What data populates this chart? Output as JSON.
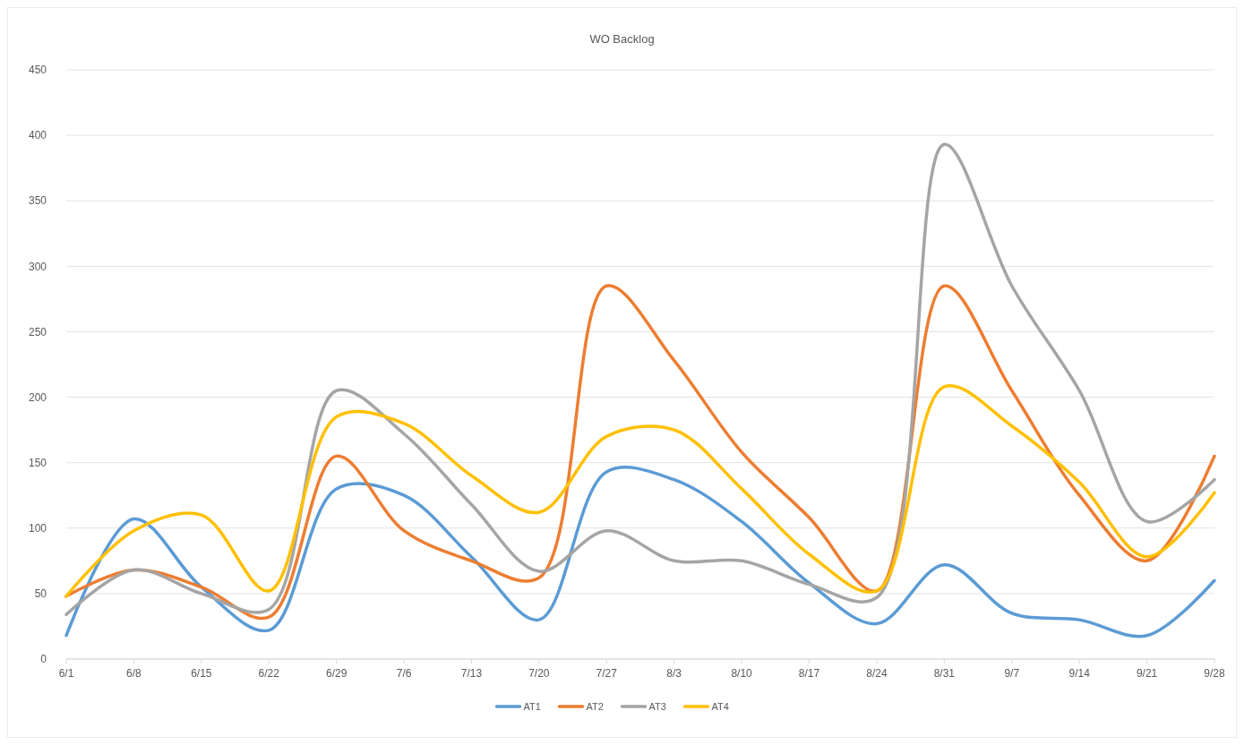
{
  "chart_data": {
    "type": "line",
    "title": "WO Backlog",
    "categories": [
      "6/1",
      "6/8",
      "6/15",
      "6/22",
      "6/29",
      "7/6",
      "7/13",
      "7/20",
      "7/27",
      "8/3",
      "8/10",
      "8/17",
      "8/24",
      "8/31",
      "9/7",
      "9/14",
      "9/21",
      "9/28"
    ],
    "series": [
      {
        "name": "AT1",
        "color": "#5b9bd5",
        "values": [
          18,
          107,
          55,
          22,
          130,
          125,
          78,
          30,
          143,
          137,
          105,
          58,
          27,
          72,
          35,
          30,
          18,
          60
        ]
      },
      {
        "name": "AT2",
        "color": "#ed7d31",
        "values": [
          48,
          68,
          55,
          32,
          155,
          98,
          75,
          62,
          285,
          228,
          158,
          108,
          52,
          285,
          205,
          125,
          75,
          155
        ]
      },
      {
        "name": "AT3",
        "color": "#a5a5a5",
        "values": [
          34,
          68,
          50,
          38,
          205,
          172,
          118,
          67,
          98,
          75,
          75,
          57,
          47,
          393,
          285,
          205,
          105,
          137
        ]
      },
      {
        "name": "AT4",
        "color": "#ffc000",
        "values": [
          48,
          98,
          110,
          52,
          185,
          180,
          140,
          112,
          170,
          175,
          130,
          80,
          52,
          208,
          178,
          135,
          78,
          127
        ]
      }
    ],
    "ylim": [
      0,
      450
    ],
    "yticks": [
      0,
      50,
      100,
      150,
      200,
      250,
      300,
      350,
      400,
      450
    ],
    "grid": "y",
    "legend": "bottom",
    "marker": "none",
    "line_style": "solid"
  }
}
